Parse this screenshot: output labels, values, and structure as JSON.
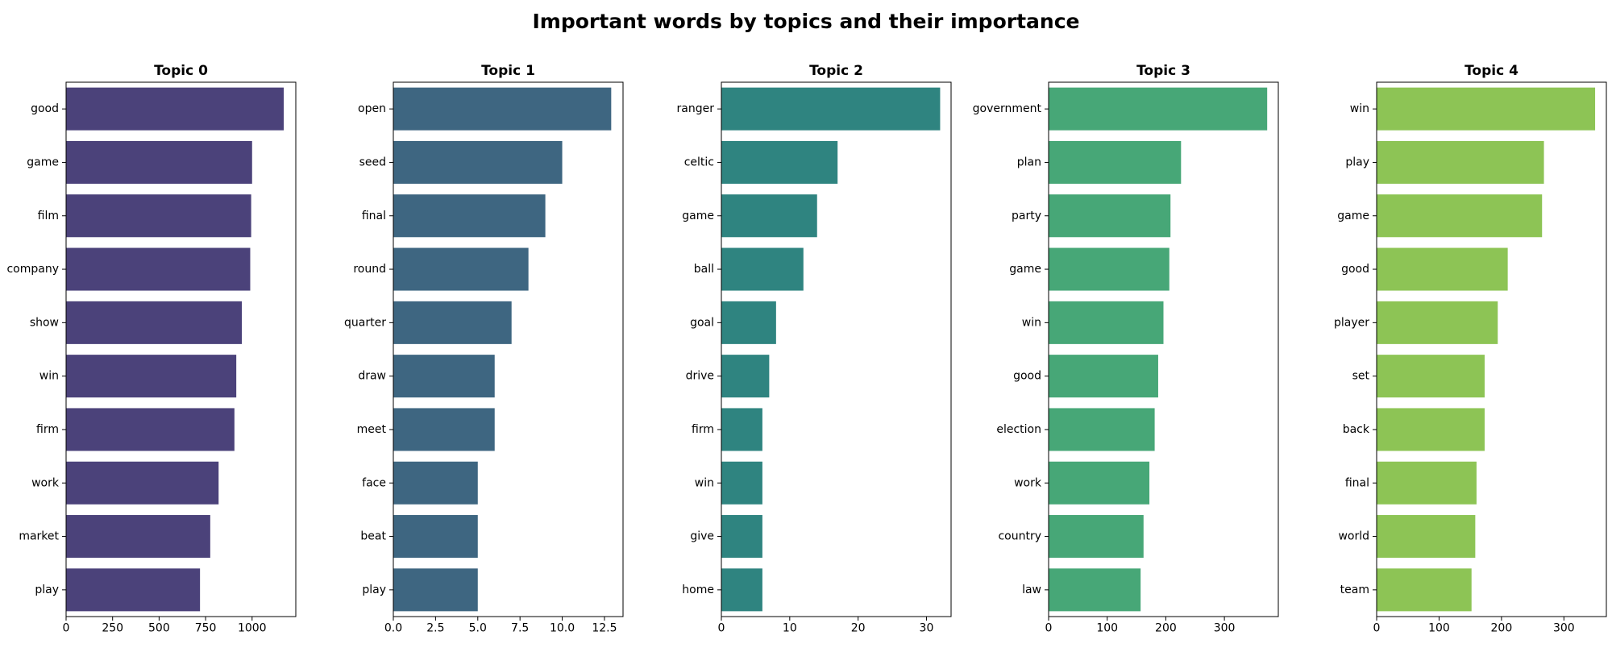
{
  "chart_data": {
    "title": "Important words by topics and their importance",
    "panels": [
      {
        "type": "bar",
        "orientation": "horizontal",
        "title": "Topic 0",
        "color": "#4b427a",
        "categories": [
          "good",
          "game",
          "film",
          "company",
          "show",
          "win",
          "firm",
          "work",
          "market",
          "play"
        ],
        "values": [
          1170,
          1000,
          995,
          990,
          945,
          915,
          905,
          820,
          775,
          720
        ],
        "xlim": [
          0,
          1235
        ],
        "xticks": [
          0,
          250,
          500,
          750,
          1000
        ],
        "xtick_labels": [
          "0",
          "250",
          "500",
          "750",
          "1000"
        ]
      },
      {
        "type": "bar",
        "orientation": "horizontal",
        "title": "Topic 1",
        "color": "#3e6681",
        "categories": [
          "open",
          "seed",
          "final",
          "round",
          "quarter",
          "draw",
          "meet",
          "face",
          "beat",
          "play"
        ],
        "values": [
          12.9,
          10.0,
          9.0,
          8.0,
          7.0,
          6.0,
          6.0,
          5.0,
          5.0,
          5.0
        ],
        "xlim": [
          0,
          13.6
        ],
        "xticks": [
          0,
          2.5,
          5,
          7.5,
          10,
          12.5
        ],
        "xtick_labels": [
          "0.0",
          "2.5",
          "5.0",
          "7.5",
          "10.0",
          "12.5"
        ]
      },
      {
        "type": "bar",
        "orientation": "horizontal",
        "title": "Topic 2",
        "color": "#2f8480",
        "categories": [
          "ranger",
          "celtic",
          "game",
          "ball",
          "goal",
          "drive",
          "firm",
          "win",
          "give",
          "home"
        ],
        "values": [
          32,
          17,
          14,
          12,
          8,
          7,
          6,
          6,
          6,
          6
        ],
        "xlim": [
          0,
          33.6
        ],
        "xticks": [
          0,
          10,
          20,
          30
        ],
        "xtick_labels": [
          "0",
          "10",
          "20",
          "30"
        ]
      },
      {
        "type": "bar",
        "orientation": "horizontal",
        "title": "Topic 3",
        "color": "#47a777",
        "categories": [
          "government",
          "plan",
          "party",
          "game",
          "win",
          "good",
          "election",
          "work",
          "country",
          "law"
        ],
        "values": [
          373,
          226,
          208,
          206,
          196,
          187,
          181,
          172,
          162,
          157
        ],
        "xlim": [
          0,
          392
        ],
        "xticks": [
          0,
          100,
          200,
          300
        ],
        "xtick_labels": [
          "0",
          "100",
          "200",
          "300"
        ]
      },
      {
        "type": "bar",
        "orientation": "horizontal",
        "title": "Topic 4",
        "color": "#8dc455",
        "categories": [
          "win",
          "play",
          "game",
          "good",
          "player",
          "set",
          "back",
          "final",
          "world",
          "team"
        ],
        "values": [
          350,
          268,
          265,
          210,
          194,
          173,
          173,
          160,
          158,
          152
        ],
        "xlim": [
          0,
          368
        ],
        "xticks": [
          0,
          100,
          200,
          300
        ],
        "xtick_labels": [
          "0",
          "100",
          "200",
          "300"
        ]
      }
    ]
  }
}
